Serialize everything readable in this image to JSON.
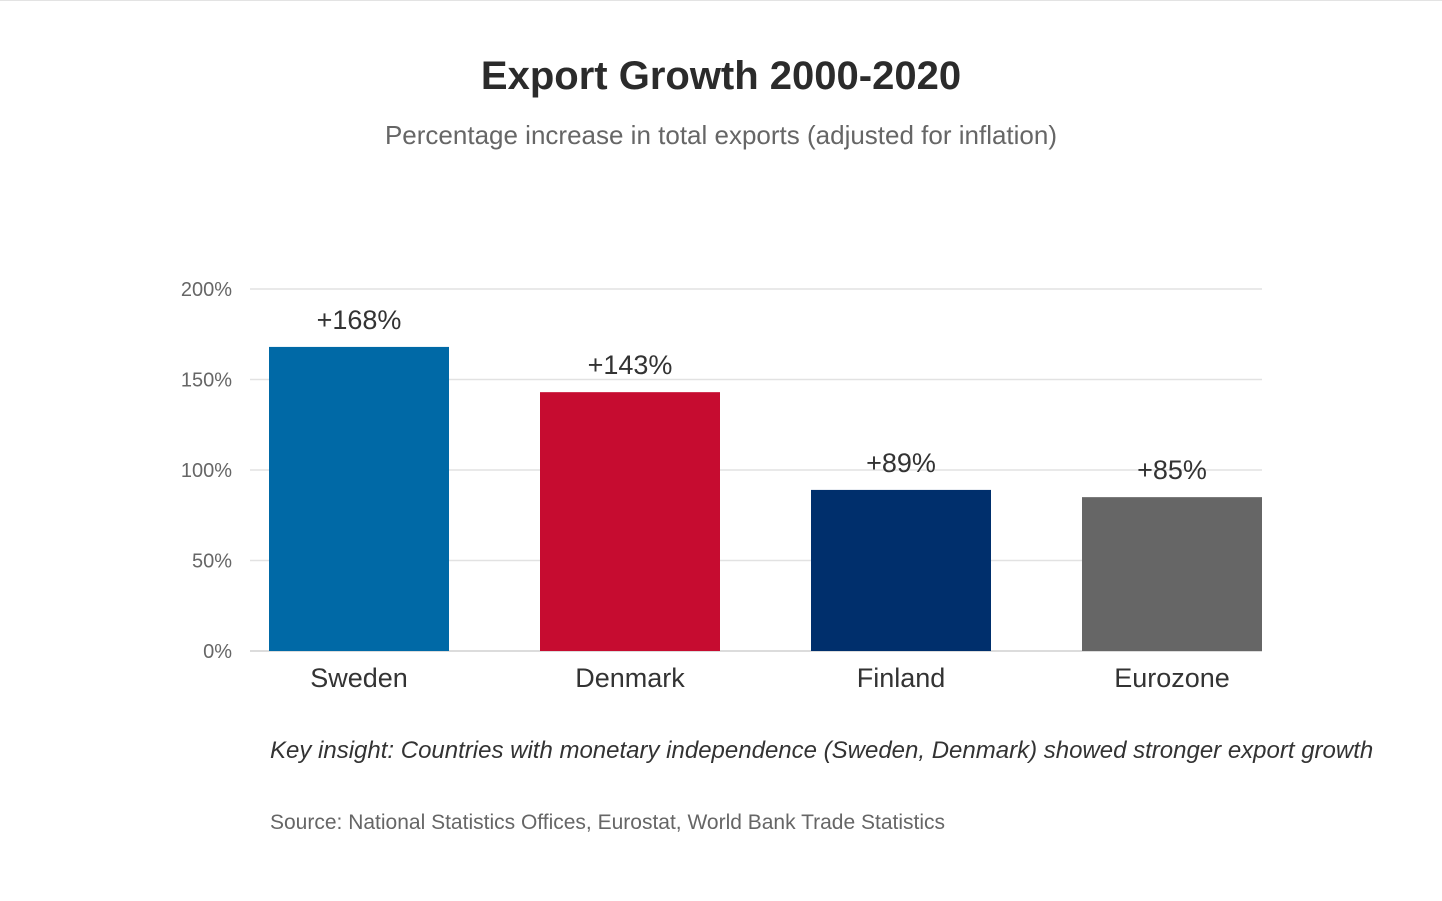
{
  "chart_data": {
    "type": "bar",
    "title": "Export Growth 2000-2020",
    "subtitle": "Percentage increase in total exports (adjusted for inflation)",
    "categories": [
      "Sweden",
      "Denmark",
      "Finland",
      "Eurozone"
    ],
    "values": [
      168,
      143,
      89,
      85
    ],
    "data_labels": [
      "+168%",
      "+143%",
      "+89%",
      "+85%"
    ],
    "colors": [
      "#0069a6",
      "#c60c30",
      "#002f6c",
      "#666666"
    ],
    "xlabel": "",
    "ylabel": "",
    "ylim": [
      0,
      200
    ],
    "yticks": [
      0,
      50,
      100,
      150,
      200
    ],
    "ytick_labels": [
      "0%",
      "50%",
      "100%",
      "150%",
      "200%"
    ],
    "grid": true,
    "legend": "none"
  },
  "notes": {
    "insight": "Key insight: Countries with monetary independence (Sweden, Denmark) showed stronger export growth",
    "source": "Source: National Statistics Offices, Eurostat, World Bank Trade Statistics"
  }
}
